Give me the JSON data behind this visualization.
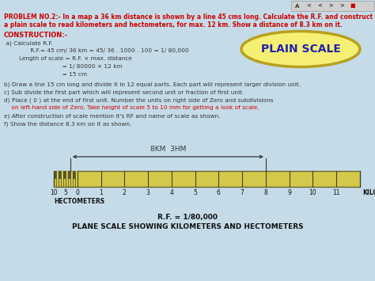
{
  "bg_color": "#c5dce8",
  "title_text_1": "PROBLEM NO.2:- In a map a 36 km distance is shown by a line 45 cms long. Calculate the R.F. and construct",
  "title_text_2": "a plain scale to read kilometers and hectometers, for max. 12 km. Show a distance of 8.3 km on it.",
  "construction_title": "CONSTRUCTION:-",
  "line1": " a) Calculate R.F.",
  "line2": "              R.F.= 45 cm/ 36 km = 45/ 36 . 1000 . 100 = 1/ 80,000",
  "line3": "        Length of scale = R.F. × max. distance",
  "line4": "                               = 1/ 80000 × 12 km",
  "line5": "                               = 15 cm",
  "line6": "b) Draw a line 15 cm long and divide it in 12 equal parts. Each part will represent larger division unit.",
  "line7": "c) Sub divide the first part which will represent second unit or fraction of first unit.",
  "line8": "d) Place ( 0 ) at the end of first unit. Number the units on right side of Zero and subdivisions",
  "line9": "    on left-hand side of Zero. Take height of scale 5 to 10 mm for getting a look of scale.",
  "line10": "e) After construction of scale mention it's RF and name of scale as shown.",
  "line11": "f) Show the distance 8.3 km on it as shown.",
  "plain_scale_label": "PLAIN SCALE",
  "scale_bar_color": "#d4c84a",
  "scale_bar_edge": "#666633",
  "km_labels": [
    "0",
    "1",
    "2",
    "3",
    "4",
    "5",
    "6",
    "7",
    "8",
    "9",
    "10",
    "11"
  ],
  "hm_labels": [
    "10",
    "5"
  ],
  "rf_label": "R.F. = 1/80,000",
  "bottom_label": "PLANE SCALE SHOWING KILOMETERS AND HECTOMETERS",
  "distance_label": "8KM  3HM",
  "ellipse_face": "#f5f075",
  "ellipse_edge": "#b8a020",
  "nav_bg": "#d0d0d0"
}
